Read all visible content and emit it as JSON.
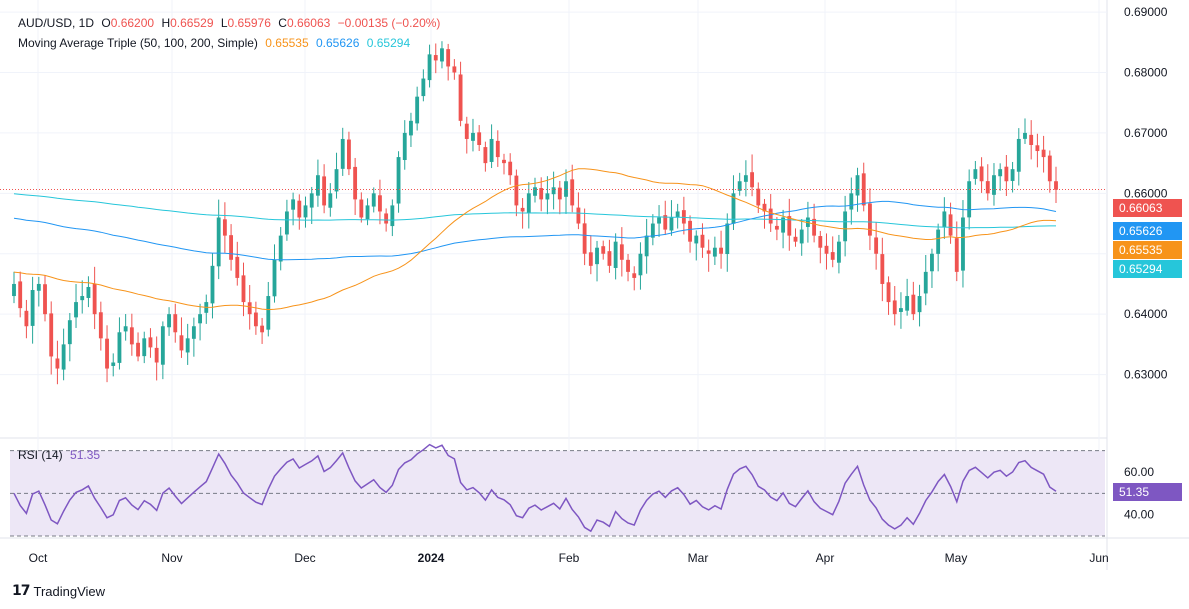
{
  "header": {
    "symbol": "AUD/USD, 1D",
    "open_label": "O",
    "open": "0.66200",
    "high_label": "H",
    "high": "0.66529",
    "low_label": "L",
    "low": "0.65976",
    "close_label": "C",
    "close": "0.66063",
    "change": "−0.00135 (−0.20%)",
    "ma_label": "Moving Average Triple (50, 100, 200, Simple)",
    "ma50": "0.65535",
    "ma100": "0.65626",
    "ma200": "0.65294",
    "rsi_label": "RSI (14)",
    "rsi_value": "51.35"
  },
  "price_tags": {
    "last": "0.66063",
    "ma100": "0.65626",
    "ma50": "0.65535",
    "ma200": "0.65294",
    "rsi": "51.35"
  },
  "branding": {
    "name": "TradingView"
  },
  "colors": {
    "up": "#26a69a",
    "down": "#ef5350",
    "ma50": "#f7931a",
    "ma100": "#2196f3",
    "ma200": "#26c6da",
    "rsi": "#7e57c2",
    "rsi_band": "#ede7f6",
    "grid": "#f0f3fa",
    "text": "#131722"
  },
  "chart_data": {
    "type": "candlestick",
    "price_axis": {
      "min": 0.62,
      "max": 0.692,
      "ticks": [
        "0.69000",
        "0.68000",
        "0.67000",
        "0.66000",
        "0.65000",
        "0.64000",
        "0.63000"
      ]
    },
    "time_axis": {
      "labels": [
        "Oct",
        "Nov",
        "Dec",
        "2024",
        "Feb",
        "Mar",
        "Apr",
        "May",
        "Jun"
      ]
    },
    "last_price": 0.66063,
    "candles_close": [
      0.645,
      0.641,
      0.638,
      0.644,
      0.645,
      0.64,
      0.633,
      0.631,
      0.635,
      0.639,
      0.642,
      0.643,
      0.6445,
      0.64,
      0.636,
      0.631,
      0.632,
      0.637,
      0.638,
      0.635,
      0.633,
      0.636,
      0.6345,
      0.632,
      0.638,
      0.64,
      0.637,
      0.634,
      0.636,
      0.638,
      0.64,
      0.642,
      0.648,
      0.656,
      0.653,
      0.649,
      0.646,
      0.642,
      0.64,
      0.638,
      0.637,
      0.643,
      0.649,
      0.653,
      0.657,
      0.659,
      0.656,
      0.658,
      0.66,
      0.663,
      0.658,
      0.66,
      0.664,
      0.669,
      0.664,
      0.659,
      0.656,
      0.658,
      0.66,
      0.657,
      0.655,
      0.658,
      0.666,
      0.67,
      0.672,
      0.676,
      0.679,
      0.683,
      0.682,
      0.684,
      0.681,
      0.68,
      0.672,
      0.669,
      0.67,
      0.668,
      0.665,
      0.669,
      0.666,
      0.665,
      0.663,
      0.658,
      0.657,
      0.66,
      0.661,
      0.659,
      0.66,
      0.661,
      0.659,
      0.662,
      0.658,
      0.655,
      0.65,
      0.648,
      0.651,
      0.65,
      0.648,
      0.652,
      0.649,
      0.647,
      0.646,
      0.65,
      0.653,
      0.655,
      0.656,
      0.654,
      0.656,
      0.657,
      0.655,
      0.652,
      0.653,
      0.651,
      0.65,
      0.651,
      0.65,
      0.655,
      0.66,
      0.662,
      0.663,
      0.661,
      0.658,
      0.657,
      0.655,
      0.654,
      0.656,
      0.653,
      0.652,
      0.654,
      0.656,
      0.653,
      0.651,
      0.65,
      0.649,
      0.652,
      0.657,
      0.66,
      0.663,
      0.658,
      0.653,
      0.65,
      0.645,
      0.642,
      0.64,
      0.641,
      0.643,
      0.64,
      0.643,
      0.647,
      0.65,
      0.654,
      0.657,
      0.653,
      0.647,
      0.656,
      0.662,
      0.664,
      0.662,
      0.66,
      0.663,
      0.664,
      0.662,
      0.664,
      0.669,
      0.67,
      0.668,
      0.667,
      0.666,
      0.662,
      0.6606
    ],
    "rsi": {
      "min": 30,
      "max": 75,
      "ticks": [
        "60.00",
        "40.00"
      ],
      "overbought": 70,
      "oversold": 30,
      "last": 51.35
    }
  }
}
